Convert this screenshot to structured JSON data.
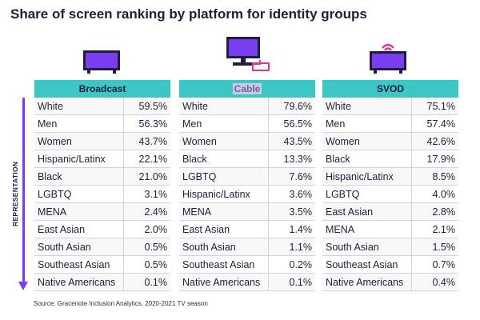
{
  "title": "Share of screen ranking by platform for identity groups",
  "axis_label": "REPRESENTATION",
  "source": "Source: Gracenote Inclusion Analytics, 2020-2021 TV season",
  "colors": {
    "header": "#3dc6c6",
    "accent": "#7a3ef0",
    "icon_pink": "#e8319a"
  },
  "panels": [
    {
      "header": "Broadcast",
      "icon": "tv-icon",
      "rows": [
        {
          "name": "White",
          "value": "59.5%"
        },
        {
          "name": "Men",
          "value": "56.3%"
        },
        {
          "name": "Women",
          "value": "43.7%"
        },
        {
          "name": "Hispanic/Latinx",
          "value": "22.1%"
        },
        {
          "name": "Black",
          "value": "21.0%"
        },
        {
          "name": "LGBTQ",
          "value": "3.1%"
        },
        {
          "name": "MENA",
          "value": "2.4%"
        },
        {
          "name": "East Asian",
          "value": "2.0%"
        },
        {
          "name": "South Asian",
          "value": "0.5%"
        },
        {
          "name": "Southeast Asian",
          "value": "0.5%"
        },
        {
          "name": "Native Americans",
          "value": "0.1%"
        }
      ]
    },
    {
      "header": "Cable",
      "icon": "cable-tv-icon",
      "rows": [
        {
          "name": "White",
          "value": "79.6%"
        },
        {
          "name": "Men",
          "value": "56.5%"
        },
        {
          "name": "Women",
          "value": "43.5%"
        },
        {
          "name": "Black",
          "value": "13.3%"
        },
        {
          "name": "LGBTQ",
          "value": "7.6%"
        },
        {
          "name": "Hispanic/Latinx",
          "value": "3.6%"
        },
        {
          "name": "MENA",
          "value": "3.5%"
        },
        {
          "name": "East Asian",
          "value": "1.4%"
        },
        {
          "name": "South Asian",
          "value": "1.1%"
        },
        {
          "name": "Southeast Asian",
          "value": "0.2%"
        },
        {
          "name": "Native Americans",
          "value": "0.1%"
        }
      ]
    },
    {
      "header": "SVOD",
      "icon": "streaming-tv-icon",
      "rows": [
        {
          "name": "White",
          "value": "75.1%"
        },
        {
          "name": "Men",
          "value": "57.4%"
        },
        {
          "name": "Women",
          "value": "42.6%"
        },
        {
          "name": "Black",
          "value": "17.9%"
        },
        {
          "name": "Hispanic/Latinx",
          "value": "8.5%"
        },
        {
          "name": "LGBTQ",
          "value": "4.0%"
        },
        {
          "name": "East Asian",
          "value": "2.8%"
        },
        {
          "name": "MENA",
          "value": "2.1%"
        },
        {
          "name": "South Asian",
          "value": "1.5%"
        },
        {
          "name": "Southeast Asian",
          "value": "0.7%"
        },
        {
          "name": "Native Americans",
          "value": "0.4%"
        }
      ]
    }
  ]
}
